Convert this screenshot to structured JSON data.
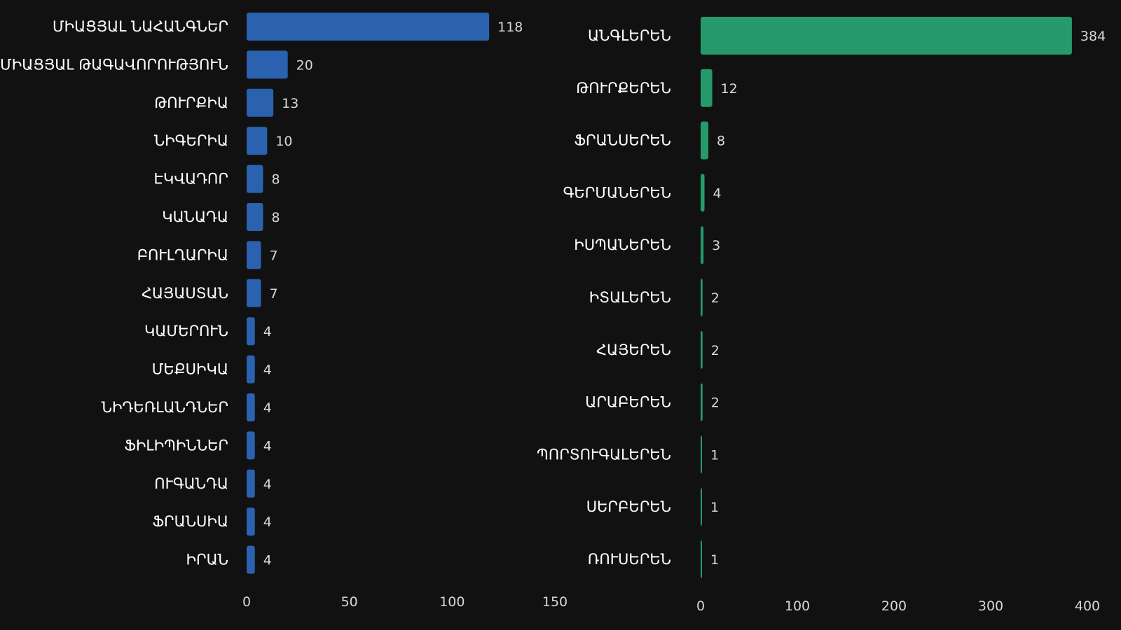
{
  "chart_data": [
    {
      "type": "bar",
      "orientation": "horizontal",
      "color": "#2a62b0",
      "categories": [
        "ՄԻԱՑՅԱԼ ՆԱՀԱՆԳՆԵՐ",
        "ՄԻԱՑՅԱԼ ԹԱԳԱՎՈՐՈՒԹՅՈՒՆ",
        "ԹՈՒՐՔԻԱ",
        "ՆԻԳԵՐԻԱ",
        "ԷԿՎԱԴՈՐ",
        "ԿԱՆԱԴԱ",
        "ԲՈՒԼՂԱՐԻԱ",
        "ՀԱՅԱՍՏԱՆ",
        "ԿԱՄԵՐՈՒՆ",
        "ՄԵՔՍԻԿԱ",
        "ՆԻԴԵՌԼԱՆԴՆԵՐ",
        "ՖԻԼԻՊԻՆՆԵՐ",
        "ՈՒԳԱՆԴԱ",
        "ՖՐԱՆՍԻԱ",
        "ԻՐԱՆ"
      ],
      "values": [
        118,
        20,
        13,
        10,
        8,
        8,
        7,
        7,
        4,
        4,
        4,
        4,
        4,
        4,
        4
      ],
      "value_labels": [
        "118",
        "20",
        "13",
        "10",
        "8",
        "8",
        "7",
        "7",
        "4",
        "4",
        "4",
        "4",
        "4",
        "4",
        "4"
      ],
      "xlim": [
        0,
        150
      ],
      "xticks": [
        "0",
        "50",
        "100",
        "150"
      ],
      "grid": false
    },
    {
      "type": "bar",
      "orientation": "horizontal",
      "color": "#269a6a",
      "categories": [
        "ԱՆԳԼԵՐԵՆ",
        "ԹՈՒՐՔԵՐԵՆ",
        "ՖՐԱՆՍԵՐԵՆ",
        "ԳԵՐՄԱՆԵՐԵՆ",
        "ԻՍՊԱՆԵՐԵՆ",
        "ԻՏԱԼԵՐԵՆ",
        "ՀԱՅԵՐԵՆ",
        "ԱՐԱԲԵՐԵՆ",
        "ՊՈՐՏՈՒԳԱԼԵՐԵՆ",
        "ՍԵՐԲԵՐԵՆ",
        "ՌՈՒՍԵՐԵՆ"
      ],
      "values": [
        384,
        12,
        8,
        4,
        3,
        2,
        2,
        2,
        1,
        1,
        1
      ],
      "value_labels": [
        "384",
        "12",
        "8",
        "4",
        "3",
        "2",
        "2",
        "2",
        "1",
        "1",
        "1"
      ],
      "xlim": [
        0,
        400
      ],
      "xticks": [
        "0",
        "100",
        "200",
        "300",
        "400"
      ],
      "grid": false
    }
  ]
}
